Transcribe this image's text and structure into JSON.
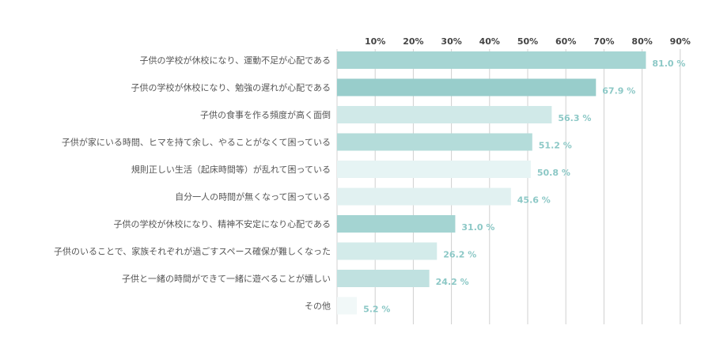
{
  "chart_data": {
    "type": "bar",
    "orientation": "horizontal",
    "title": "",
    "xlabel": "",
    "ylabel": "",
    "xlim": [
      0,
      90
    ],
    "ticks": [
      10,
      20,
      30,
      40,
      50,
      60,
      70,
      80,
      90
    ],
    "tick_labels": [
      "10%",
      "20%",
      "30%",
      "40%",
      "50%",
      "60%",
      "70%",
      "80%",
      "90%"
    ],
    "grid": true,
    "legend": "none",
    "categories": [
      "子供の学校が休校になり、運動不足が心配である",
      "子供の学校が休校になり、勉強の遅れが心配である",
      "子供の食事を作る頻度が高く面倒",
      "子供が家にいる時間、ヒマを持て余し、やることがなくて困っている",
      "規則正しい生活（起床時間等）が乱れて困っている",
      "自分一人の時間が無くなって困っている",
      "子供の学校が休校になり、精神不安定になり心配である",
      "子供のいることで、家族それぞれが過ごすスペース確保が難しくなった",
      "子供と一緒の時間ができて一緒に遊べることが嬉しい",
      "その他"
    ],
    "values": [
      81.0,
      67.9,
      56.3,
      51.2,
      50.8,
      45.6,
      31.0,
      26.2,
      24.2,
      5.2
    ],
    "value_labels": [
      "81.0 %",
      "67.9 %",
      "56.3 %",
      "51.2 %",
      "50.8 %",
      "45.6 %",
      "31.0 %",
      "26.2 %",
      "24.2 %",
      "5.2 %"
    ],
    "colors": [
      "#a6d5d3",
      "#98cdcb",
      "#d0e9e8",
      "#b4dcda",
      "#e6f4f4",
      "#e1f1f1",
      "#a4d4d2",
      "#d3ebea",
      "#c0e1e0",
      "#f1f8f8"
    ],
    "label_color": "#8cc8c6"
  }
}
